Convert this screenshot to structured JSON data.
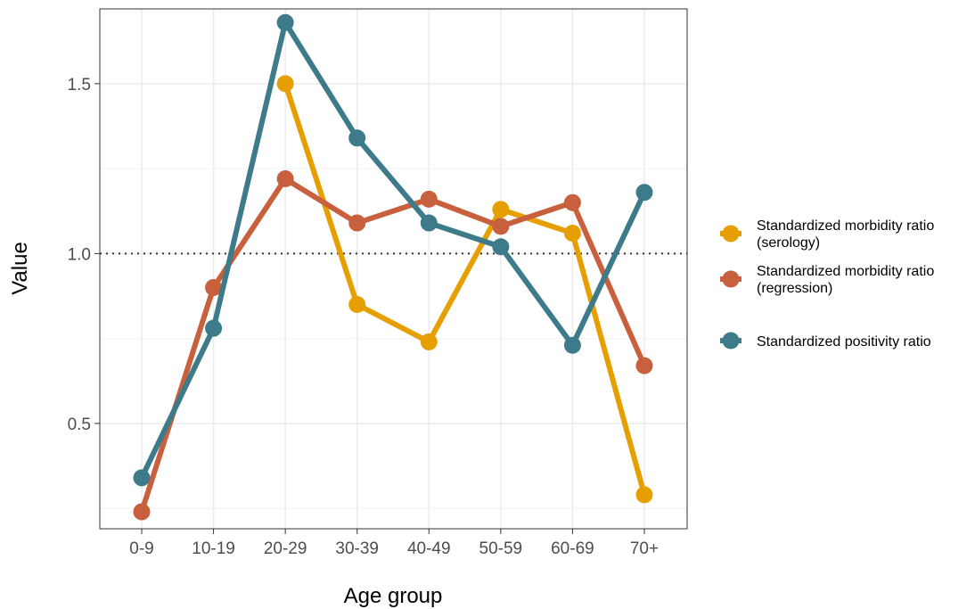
{
  "chart_data": {
    "type": "line",
    "title": "",
    "xlabel": "Age group",
    "ylabel": "Value",
    "categories": [
      "0-9",
      "10-19",
      "20-29",
      "30-39",
      "40-49",
      "50-59",
      "60-69",
      "70+"
    ],
    "ylim": [
      0.19,
      1.72
    ],
    "yticks": [
      0.5,
      1.0,
      1.5
    ],
    "ytick_labels": [
      "0.5",
      "1.0",
      "1.5"
    ],
    "grid": true,
    "reference_line": {
      "y": 1.0,
      "style": "dotted",
      "color": "#333333"
    },
    "legend": {
      "placement": "right",
      "entries": [
        {
          "line1": "Standardized morbidity ratio",
          "line2": "(serology)",
          "color": "#E69F00"
        },
        {
          "line1": "Standardized morbidity ratio",
          "line2": "(regression)",
          "color": "#C8603E"
        },
        {
          "line1": "Standardized positivity ratio",
          "line2": "",
          "color": "#3D7A8A"
        }
      ]
    },
    "series": [
      {
        "name": "Standardized morbidity ratio (serology)",
        "color": "#E69F00",
        "values": [
          null,
          null,
          1.5,
          0.85,
          0.74,
          1.13,
          1.06,
          0.29
        ]
      },
      {
        "name": "Standardized morbidity ratio (regression)",
        "color": "#C8603E",
        "values": [
          0.24,
          0.9,
          1.22,
          1.09,
          1.16,
          1.08,
          1.15,
          0.67
        ]
      },
      {
        "name": "Standardized positivity ratio",
        "color": "#3D7A8A",
        "values": [
          0.34,
          0.78,
          1.68,
          1.34,
          1.09,
          1.02,
          0.73,
          1.18
        ]
      }
    ]
  }
}
